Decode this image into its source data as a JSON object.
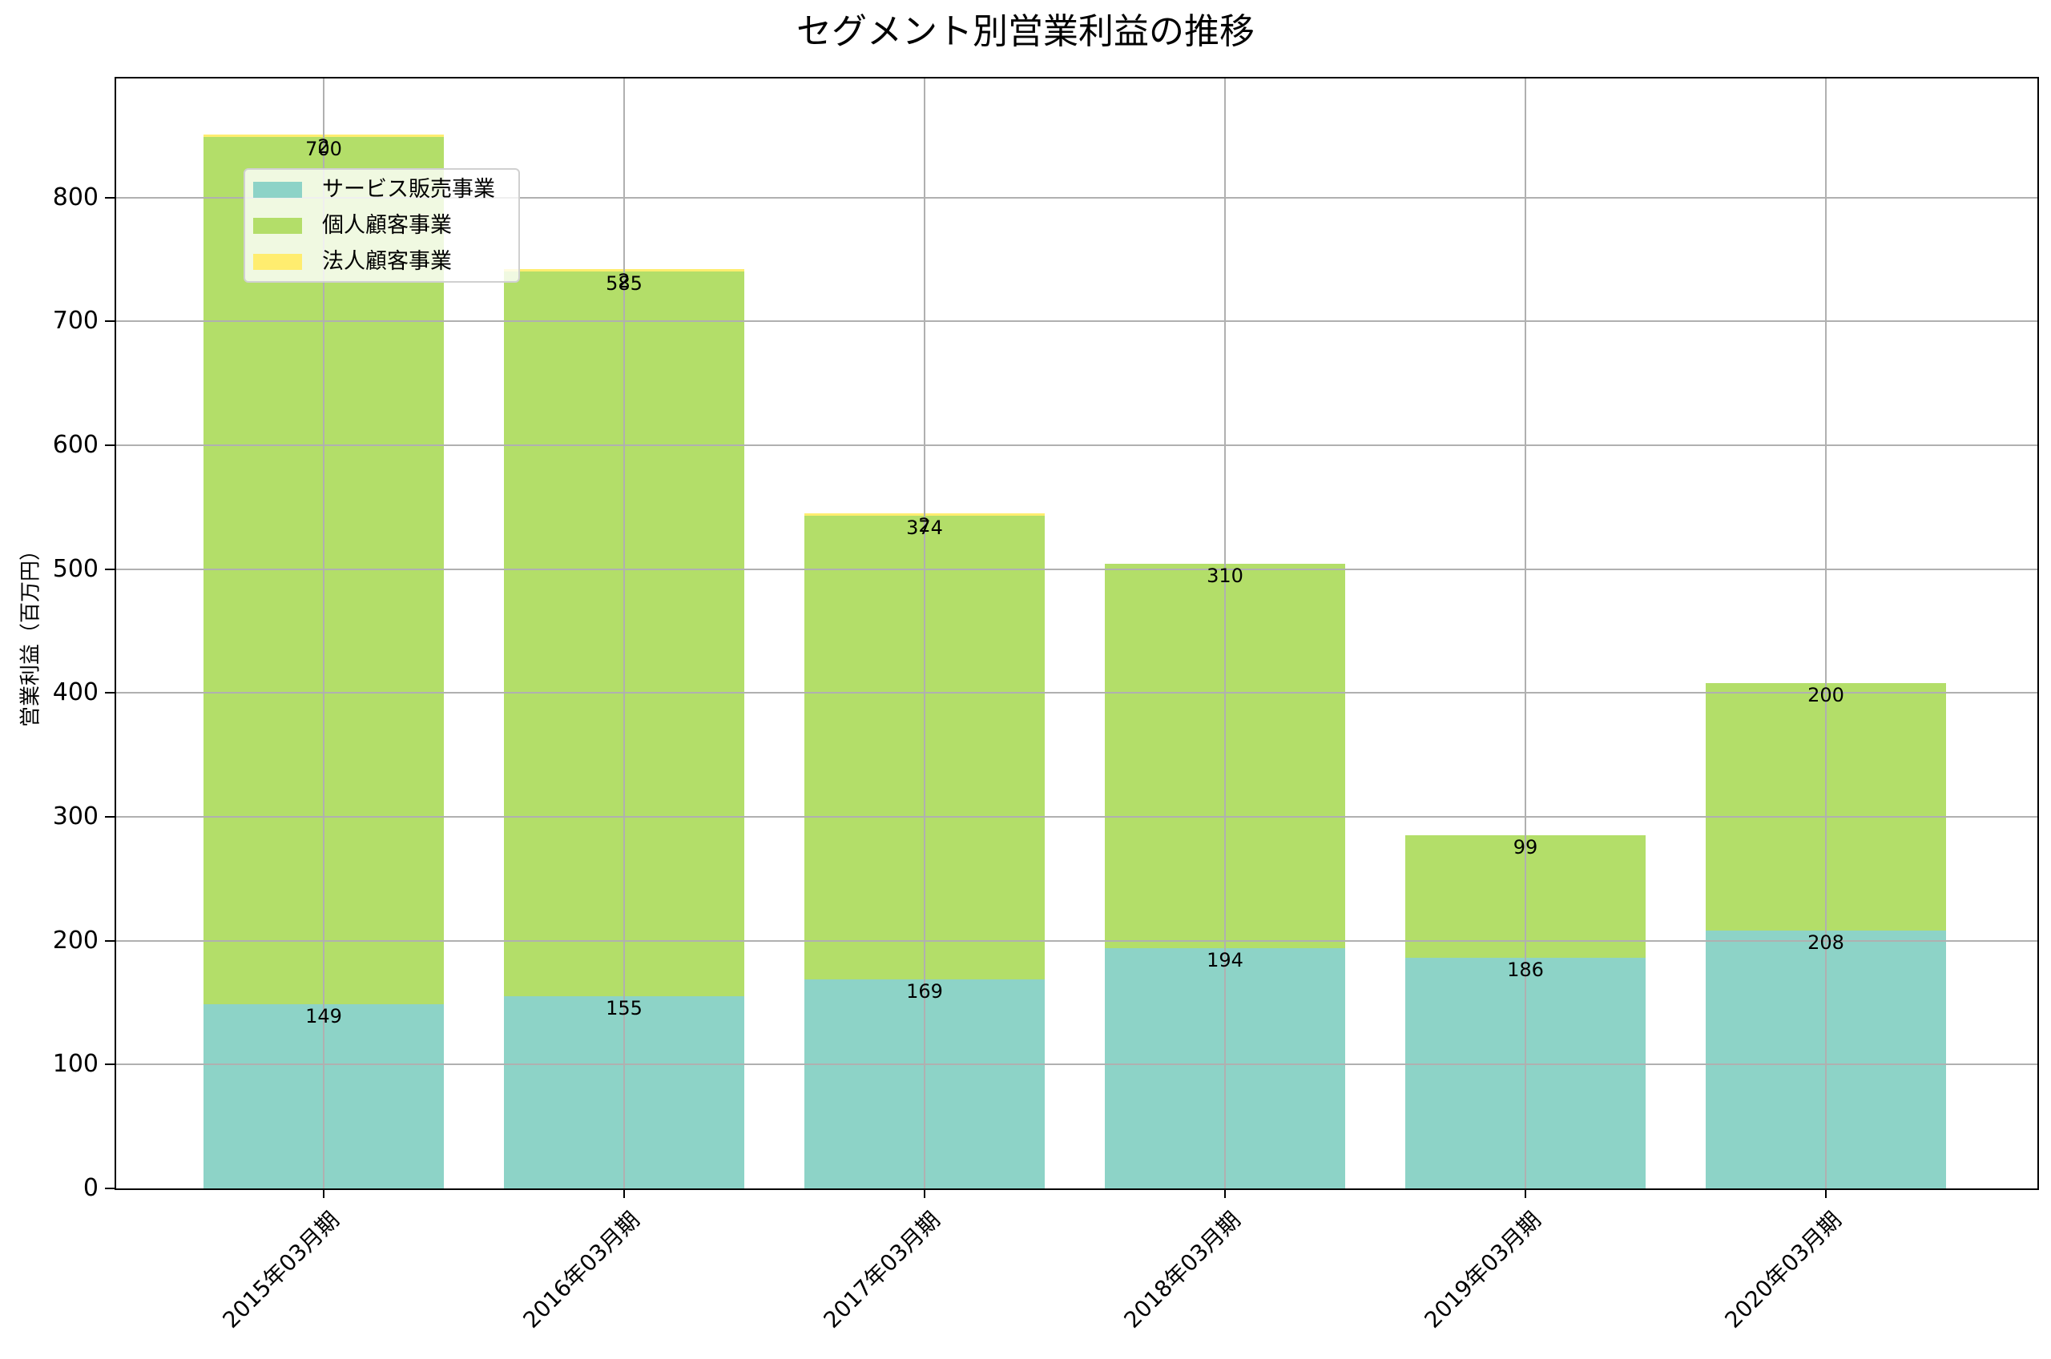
{
  "chart_data": {
    "type": "bar",
    "stacked": true,
    "title": "セグメント別営業利益の推移",
    "xlabel": "",
    "ylabel": "営業利益（百万円）",
    "ylim": [
      0,
      896
    ],
    "yticks": [
      0,
      100,
      200,
      300,
      400,
      500,
      600,
      700,
      800
    ],
    "grid": true,
    "legend_position": "upper left",
    "categories": [
      "2015年03月期",
      "2016年03月期",
      "2017年03月期",
      "2018年03月期",
      "2019年03月期",
      "2020年03月期"
    ],
    "series": [
      {
        "name": "サービス販売事業",
        "color": "#8dd3c7",
        "values": [
          149,
          155,
          169,
          194,
          186,
          208
        ]
      },
      {
        "name": "個人顧客事業",
        "color": "#b3de69",
        "values": [
          700,
          585,
          374,
          310,
          99,
          200
        ]
      },
      {
        "name": "法人顧客事業",
        "color": "#ffed6f",
        "values": [
          2,
          2,
          2,
          0,
          0,
          0
        ]
      }
    ],
    "data_labels": [
      [
        "149",
        "155",
        "169",
        "194",
        "186",
        "208"
      ],
      [
        "700",
        "585",
        "374",
        "310",
        "99",
        "200"
      ],
      [
        "2",
        "2",
        "2",
        "",
        "",
        ""
      ]
    ]
  },
  "title": "セグメント別営業利益の推移",
  "ylabel": "営業利益（百万円）",
  "legend": [
    {
      "label": "サービス販売事業",
      "color": "#8dd3c7"
    },
    {
      "label": "個人顧客事業",
      "color": "#b3de69"
    },
    {
      "label": "法人顧客事業",
      "color": "#ffed6f"
    }
  ]
}
